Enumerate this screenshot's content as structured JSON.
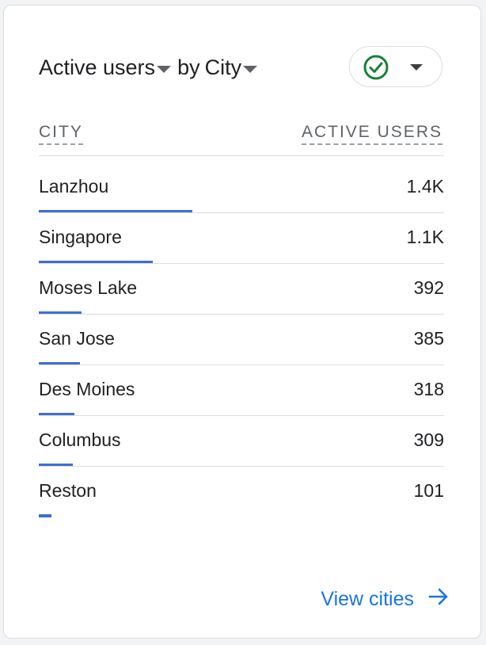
{
  "header": {
    "metric_label": "Active users",
    "by_label": "by",
    "dimension_label": "City"
  },
  "status": {
    "icon": "check-circle-icon",
    "color": "#188038"
  },
  "table": {
    "col_city": "CITY",
    "col_users": "ACTIVE USERS",
    "rows": [
      {
        "city": "Lanzhou",
        "value": "1.4K",
        "bar_fraction": 1.0
      },
      {
        "city": "Singapore",
        "value": "1.1K",
        "bar_fraction": 0.74
      },
      {
        "city": "Moses Lake",
        "value": "392",
        "bar_fraction": 0.28
      },
      {
        "city": "San Jose",
        "value": "385",
        "bar_fraction": 0.27
      },
      {
        "city": "Des Moines",
        "value": "318",
        "bar_fraction": 0.23
      },
      {
        "city": "Columbus",
        "value": "309",
        "bar_fraction": 0.22
      },
      {
        "city": "Reston",
        "value": "101",
        "bar_fraction": 0.08
      }
    ]
  },
  "footer": {
    "link_label": "View cities",
    "link_icon": "arrow-right-icon"
  },
  "colors": {
    "accent": "#1a73e8",
    "bar": "#3d6fd0",
    "check": "#188038"
  }
}
